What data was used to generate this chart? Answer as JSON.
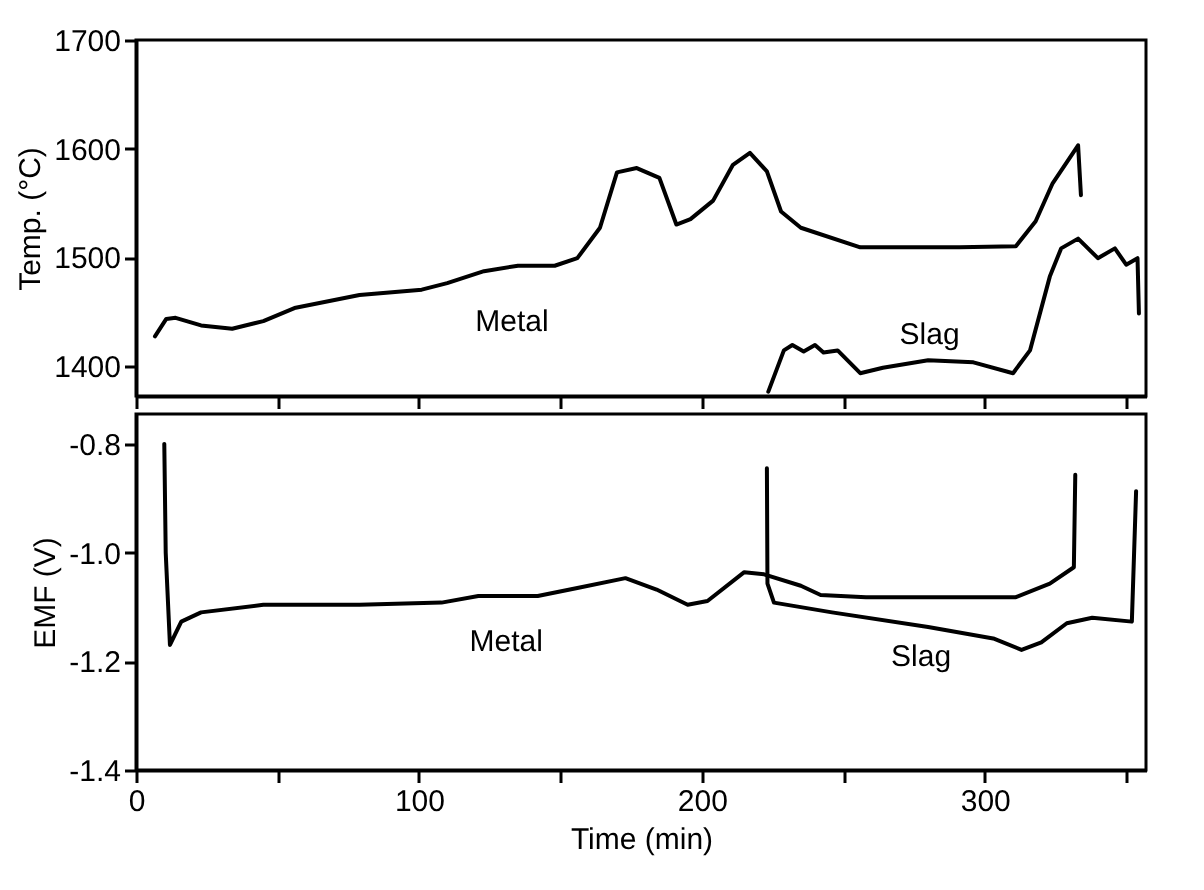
{
  "chart_data": [
    {
      "type": "line",
      "ylabel": "Temp. (°C)",
      "xlim": [
        0,
        357
      ],
      "ylim": [
        1372,
        1700
      ],
      "xticks": [
        0,
        {
          "value": 50,
          "label": null
        },
        100,
        {
          "value": 150,
          "label": null
        },
        200,
        {
          "value": 250,
          "label": null
        },
        300,
        {
          "value": 350,
          "label": null
        }
      ],
      "yticks": [
        1400,
        1500,
        1600,
        1700
      ],
      "tick_labels": "y",
      "grid": false,
      "marker": "none",
      "line_style": "solid",
      "series": [
        {
          "color": "#000000",
          "x": [
            6.7,
            10.7,
            14,
            23,
            34,
            45,
            56,
            79,
            101,
            110,
            123,
            135,
            148,
            156,
            164,
            170,
            177,
            185,
            191,
            196,
            204,
            211,
            217,
            223,
            228,
            235,
            256,
            291,
            311,
            318,
            324,
            333,
            334
          ],
          "values": [
            1427,
            1443,
            1444,
            1437,
            1434,
            1441,
            1453,
            1465,
            1470,
            1476,
            1487,
            1492,
            1492,
            1499,
            1527,
            1578,
            1582,
            1573,
            1530,
            1535,
            1552,
            1585,
            1596,
            1579,
            1542,
            1527,
            1509,
            1509,
            1510,
            1533,
            1568,
            1603,
            1557
          ]
        },
        {
          "color": "#000000",
          "x": [
            223.5,
            229,
            232,
            236,
            240,
            243,
            248,
            256,
            264,
            280,
            296,
            310,
            316,
            323,
            327,
            333,
            340,
            346,
            350,
            354,
            354.5
          ],
          "values": [
            1376,
            1414,
            1419,
            1413,
            1419,
            1412,
            1414,
            1393,
            1398,
            1405,
            1403,
            1393,
            1414,
            1482,
            1508,
            1517,
            1499,
            1508,
            1493,
            1499,
            1448
          ]
        }
      ],
      "annotations": [
        {
          "text": "Metal",
          "x": 110,
          "y": 1476
        },
        {
          "text": "Slag",
          "x": 260,
          "y": 1396
        }
      ]
    },
    {
      "type": "line",
      "xlabel": "Time (min)",
      "ylabel": "EMF (V)",
      "xlim": [
        0,
        357
      ],
      "ylim": [
        -1.4,
        -0.745
      ],
      "xticks": [
        0,
        {
          "value": 50,
          "label": null
        },
        100,
        {
          "value": 150,
          "label": null
        },
        200,
        {
          "value": 250,
          "label": null
        },
        300,
        {
          "value": 350,
          "label": null
        }
      ],
      "yticks": [
        {
          "value": -1.4,
          "label": "-1.4"
        },
        {
          "value": -1.2,
          "label": "-1.2"
        },
        {
          "value": -1.0,
          "label": "-1.0"
        },
        {
          "value": -0.8,
          "label": "-0.8"
        }
      ],
      "grid": false,
      "marker": "none",
      "line_style": "solid",
      "series": [
        {
          "color": "#000000",
          "x": [
            10,
            10.5,
            12,
            16,
            23,
            45,
            79,
            108,
            121,
            142,
            156,
            173,
            184,
            195,
            202,
            215,
            222,
            235,
            242,
            258,
            311,
            323,
            331.5,
            332
          ],
          "values": [
            -0.8,
            -1.0,
            -1.17,
            -1.127,
            -1.11,
            -1.096,
            -1.096,
            -1.092,
            -1.08,
            -1.08,
            -1.065,
            -1.047,
            -1.068,
            -1.096,
            -1.089,
            -1.036,
            -1.04,
            -1.061,
            -1.078,
            -1.082,
            -1.082,
            -1.057,
            -1.027,
            -0.857
          ]
        },
        {
          "color": "#000000",
          "x": [
            223,
            223.2,
            225.5,
            246,
            280,
            303,
            313,
            320,
            329,
            338,
            352,
            353.5
          ],
          "values": [
            -0.845,
            -1.057,
            -1.092,
            -1.11,
            -1.137,
            -1.158,
            -1.179,
            -1.165,
            -1.13,
            -1.12,
            -1.127,
            -0.887
          ]
        }
      ],
      "annotations": [
        {
          "text": "Metal",
          "x": 108,
          "y": -1.092
        },
        {
          "text": "Slag",
          "x": 257,
          "y": -1.12
        }
      ]
    }
  ]
}
